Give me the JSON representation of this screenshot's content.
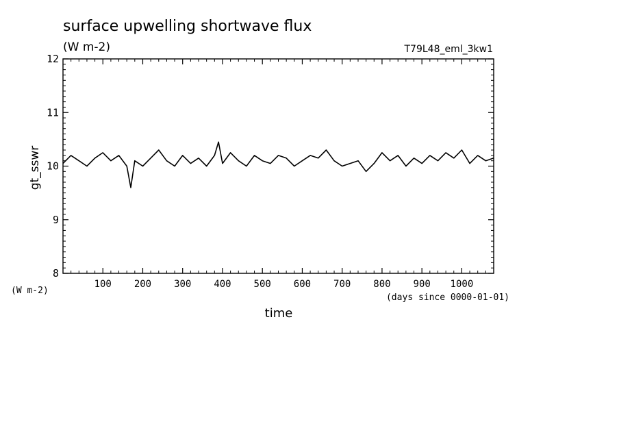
{
  "chart_data": {
    "type": "line",
    "title": "surface upwelling shortwave flux",
    "units": "(W m-2)",
    "run_label": "T79L48_eml_3kw1",
    "ylabel": "gt_sswr",
    "yunits_label": "(W m-2)",
    "xlabel": "time",
    "xunits_label": "(days since 0000-01-01)",
    "xlim": [
      0,
      1080
    ],
    "ylim": [
      8,
      12
    ],
    "xticks": [
      100,
      200,
      300,
      400,
      500,
      600,
      700,
      800,
      900,
      1000
    ],
    "xtick_labels": [
      "100",
      "200",
      "300",
      "400",
      "500",
      "600",
      "700",
      "800",
      "900",
      "1000"
    ],
    "yticks": [
      8,
      9,
      10,
      11,
      12
    ],
    "ytick_labels": [
      "8",
      "9",
      "10",
      "11",
      "12"
    ],
    "grid": false,
    "series": [
      {
        "x": [
          0,
          20,
          40,
          60,
          80,
          100,
          120,
          140,
          160,
          170,
          180,
          200,
          220,
          240,
          260,
          280,
          300,
          320,
          340,
          360,
          380,
          390,
          400,
          420,
          440,
          460,
          480,
          500,
          520,
          540,
          560,
          580,
          600,
          620,
          640,
          660,
          680,
          700,
          720,
          740,
          760,
          780,
          800,
          820,
          840,
          860,
          880,
          900,
          920,
          940,
          960,
          980,
          1000,
          1020,
          1040,
          1060,
          1080
        ],
        "y": [
          10.05,
          10.2,
          10.1,
          10.0,
          10.15,
          10.25,
          10.1,
          10.2,
          10.0,
          9.6,
          10.1,
          10.0,
          10.15,
          10.3,
          10.1,
          10.0,
          10.2,
          10.05,
          10.15,
          10.0,
          10.2,
          10.45,
          10.05,
          10.25,
          10.1,
          10.0,
          10.2,
          10.1,
          10.05,
          10.2,
          10.15,
          10.0,
          10.1,
          10.2,
          10.15,
          10.3,
          10.1,
          10.0,
          10.05,
          10.1,
          9.9,
          10.05,
          10.25,
          10.1,
          10.2,
          10.0,
          10.15,
          10.05,
          10.2,
          10.1,
          10.25,
          10.15,
          10.3,
          10.05,
          10.2,
          10.1,
          10.15
        ]
      }
    ]
  }
}
